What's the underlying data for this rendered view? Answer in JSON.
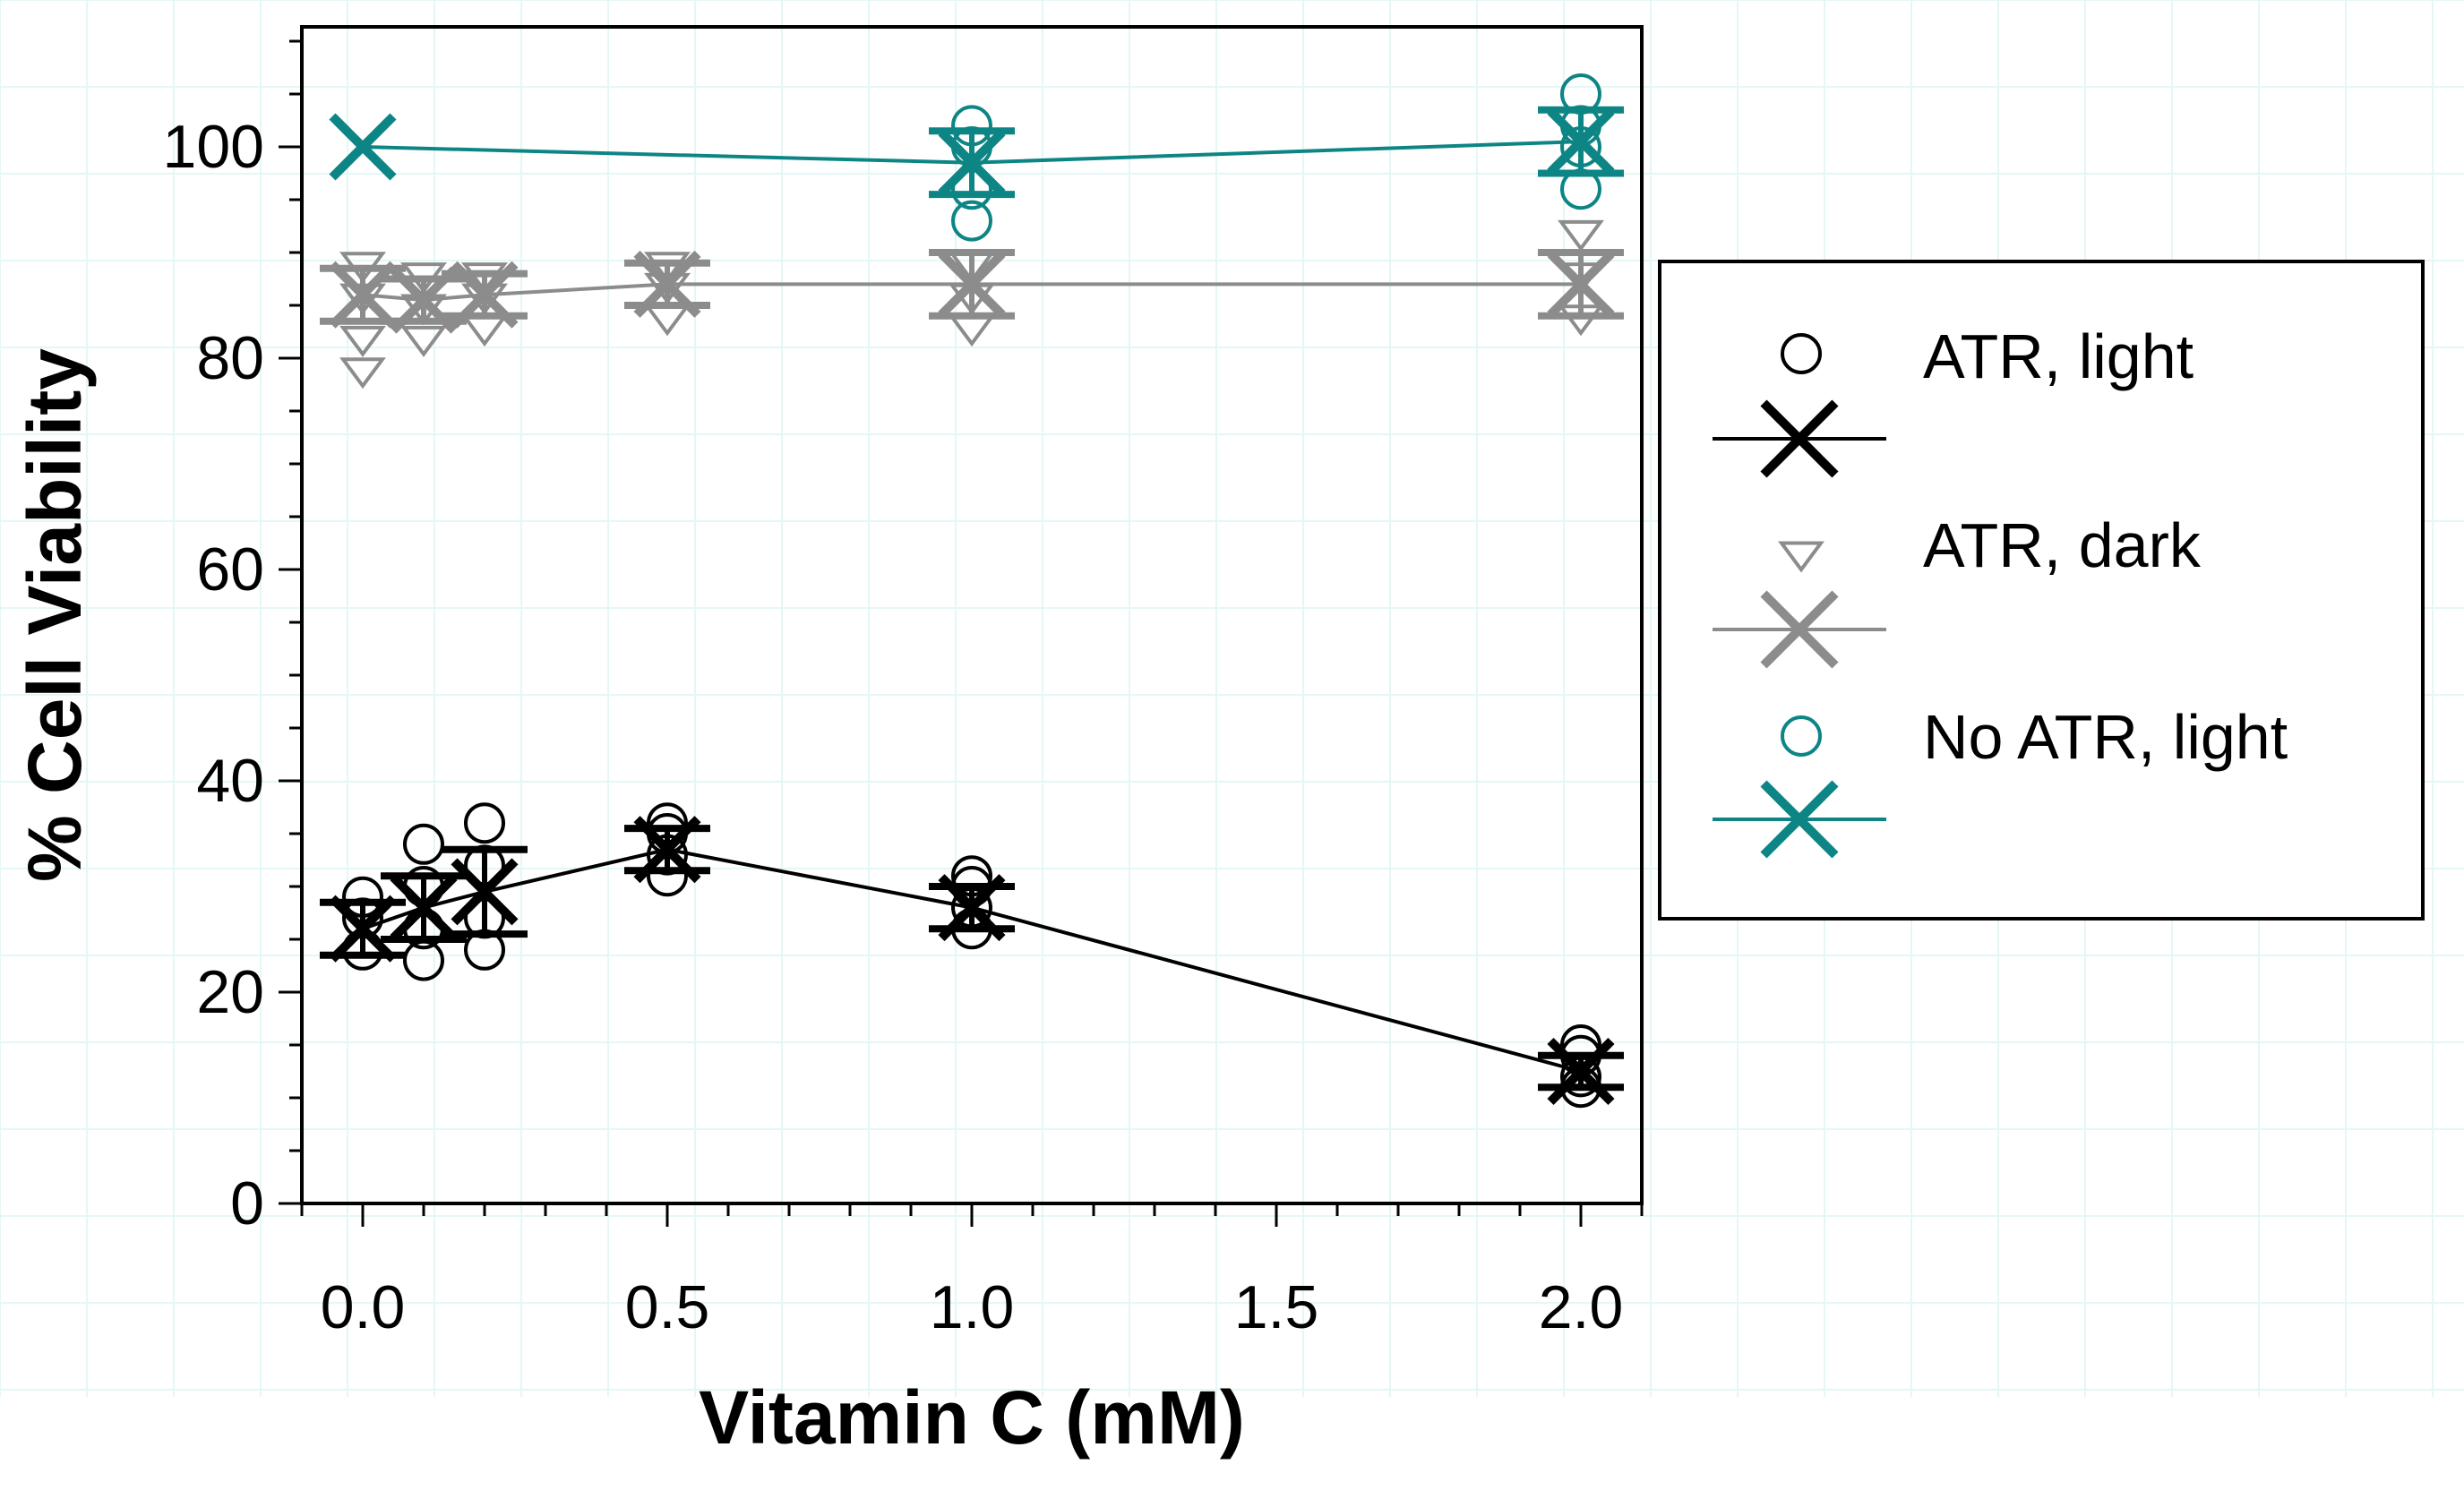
{
  "chart_data": {
    "type": "scatter",
    "title": "",
    "xlabel": "Vitamin C (mM)",
    "ylabel": "% Cell Viability",
    "xlim": [
      -0.1,
      2.1
    ],
    "ylim": [
      0,
      110
    ],
    "xticks": [
      0.0,
      0.5,
      1.0,
      1.5,
      2.0
    ],
    "xtick_labels": [
      "0.0",
      "0.5",
      "1.0",
      "1.5",
      "2.0"
    ],
    "yticks": [
      0,
      20,
      40,
      60,
      80,
      100
    ],
    "ytick_labels": [
      "0",
      "20",
      "40",
      "60",
      "80",
      "100"
    ],
    "grid": "faint background grid",
    "legend_position": "right, outside plot",
    "series": [
      {
        "name": "ATR, light",
        "color": "#000000",
        "raw_marker": "circle",
        "raw_points": [
          {
            "x": 0.0,
            "y": 24
          },
          {
            "x": 0.0,
            "y": 27
          },
          {
            "x": 0.0,
            "y": 29
          },
          {
            "x": 0.1,
            "y": 23
          },
          {
            "x": 0.1,
            "y": 26
          },
          {
            "x": 0.1,
            "y": 30
          },
          {
            "x": 0.1,
            "y": 34
          },
          {
            "x": 0.2,
            "y": 24
          },
          {
            "x": 0.2,
            "y": 27
          },
          {
            "x": 0.2,
            "y": 32
          },
          {
            "x": 0.2,
            "y": 36
          },
          {
            "x": 0.5,
            "y": 31
          },
          {
            "x": 0.5,
            "y": 33
          },
          {
            "x": 0.5,
            "y": 35
          },
          {
            "x": 0.5,
            "y": 36
          },
          {
            "x": 1.0,
            "y": 26
          },
          {
            "x": 1.0,
            "y": 28
          },
          {
            "x": 1.0,
            "y": 30
          },
          {
            "x": 1.0,
            "y": 31
          },
          {
            "x": 2.0,
            "y": 11
          },
          {
            "x": 2.0,
            "y": 12
          },
          {
            "x": 2.0,
            "y": 14
          },
          {
            "x": 2.0,
            "y": 15
          }
        ],
        "mean_x": [
          0.0,
          0.1,
          0.2,
          0.5,
          1.0,
          2.0
        ],
        "mean_y": [
          26,
          28,
          29.5,
          33.5,
          28,
          12.5
        ],
        "error": [
          2.5,
          3,
          4,
          2,
          2,
          1.5
        ]
      },
      {
        "name": "ATR, dark",
        "color": "#8c8c8c",
        "raw_marker": "triangle-down",
        "raw_points": [
          {
            "x": 0.0,
            "y": 79
          },
          {
            "x": 0.0,
            "y": 82
          },
          {
            "x": 0.0,
            "y": 86
          },
          {
            "x": 0.0,
            "y": 89
          },
          {
            "x": 0.1,
            "y": 82
          },
          {
            "x": 0.1,
            "y": 85
          },
          {
            "x": 0.1,
            "y": 88
          },
          {
            "x": 0.2,
            "y": 83
          },
          {
            "x": 0.2,
            "y": 86
          },
          {
            "x": 0.2,
            "y": 88
          },
          {
            "x": 0.5,
            "y": 84
          },
          {
            "x": 0.5,
            "y": 87
          },
          {
            "x": 0.5,
            "y": 89
          },
          {
            "x": 1.0,
            "y": 83
          },
          {
            "x": 1.0,
            "y": 86
          },
          {
            "x": 1.0,
            "y": 89
          },
          {
            "x": 2.0,
            "y": 84
          },
          {
            "x": 2.0,
            "y": 88
          },
          {
            "x": 2.0,
            "y": 92
          }
        ],
        "mean_x": [
          0.0,
          0.1,
          0.2,
          0.5,
          1.0,
          2.0
        ],
        "mean_y": [
          86,
          85.5,
          86,
          87,
          87,
          87
        ],
        "error": [
          2.5,
          2,
          2,
          2,
          3,
          3
        ]
      },
      {
        "name": "No ATR, light",
        "color": "#0e8585",
        "raw_marker": "circle",
        "raw_points": [
          {
            "x": 1.0,
            "y": 93
          },
          {
            "x": 1.0,
            "y": 96
          },
          {
            "x": 1.0,
            "y": 100
          },
          {
            "x": 1.0,
            "y": 102
          },
          {
            "x": 2.0,
            "y": 96
          },
          {
            "x": 2.0,
            "y": 100
          },
          {
            "x": 2.0,
            "y": 102
          },
          {
            "x": 2.0,
            "y": 105
          }
        ],
        "mean_x": [
          0.0,
          1.0,
          2.0
        ],
        "mean_y": [
          100,
          98.5,
          100.5
        ],
        "error": [
          0,
          3,
          3
        ]
      }
    ]
  }
}
